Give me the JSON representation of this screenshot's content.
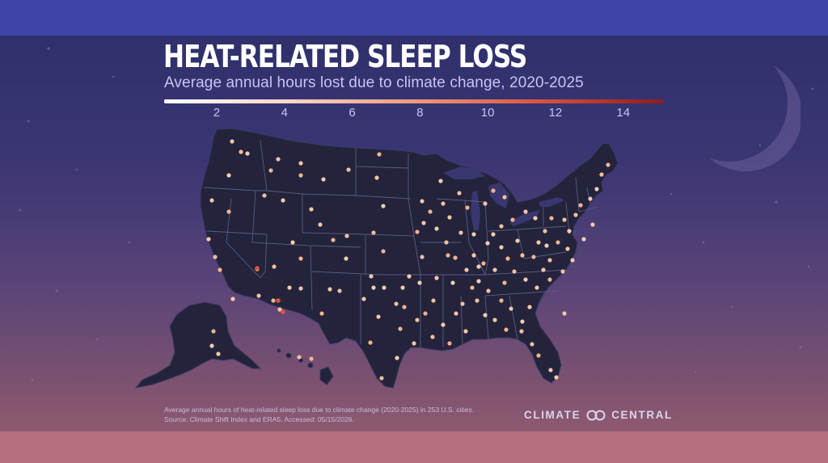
{
  "title": "HEAT-RELATED SLEEP LOSS",
  "subtitle": "Average annual hours lost due to climate change, 2020-2025",
  "legend": {
    "ticks": [
      {
        "value": 2,
        "label": "2"
      },
      {
        "value": 4,
        "label": "4"
      },
      {
        "value": 6,
        "label": "6"
      },
      {
        "value": 8,
        "label": "8"
      },
      {
        "value": 10,
        "label": "10"
      },
      {
        "value": 12,
        "label": "12"
      },
      {
        "value": 14,
        "label": "14"
      }
    ],
    "color_low": "#ffffff",
    "color_mid": "#ee9a7e",
    "color_high": "#8d1b1d"
  },
  "source": {
    "line1": "Average annual hours of heat-related sleep loss due to climate change (2020-2025) in 253 U.S. cities.",
    "line2": "Source: Climate Shift Index and ERA5. Accessed: 05/15/2026."
  },
  "brand": {
    "left": "CLIMATE",
    "right": "CENTRAL",
    "logo_icon": "infinity-loop-icon"
  },
  "colors": {
    "land": "#23233b",
    "border": "#5b5a88",
    "top_band": "#3f44a8",
    "bottom_band": "#b66f7d"
  }
}
